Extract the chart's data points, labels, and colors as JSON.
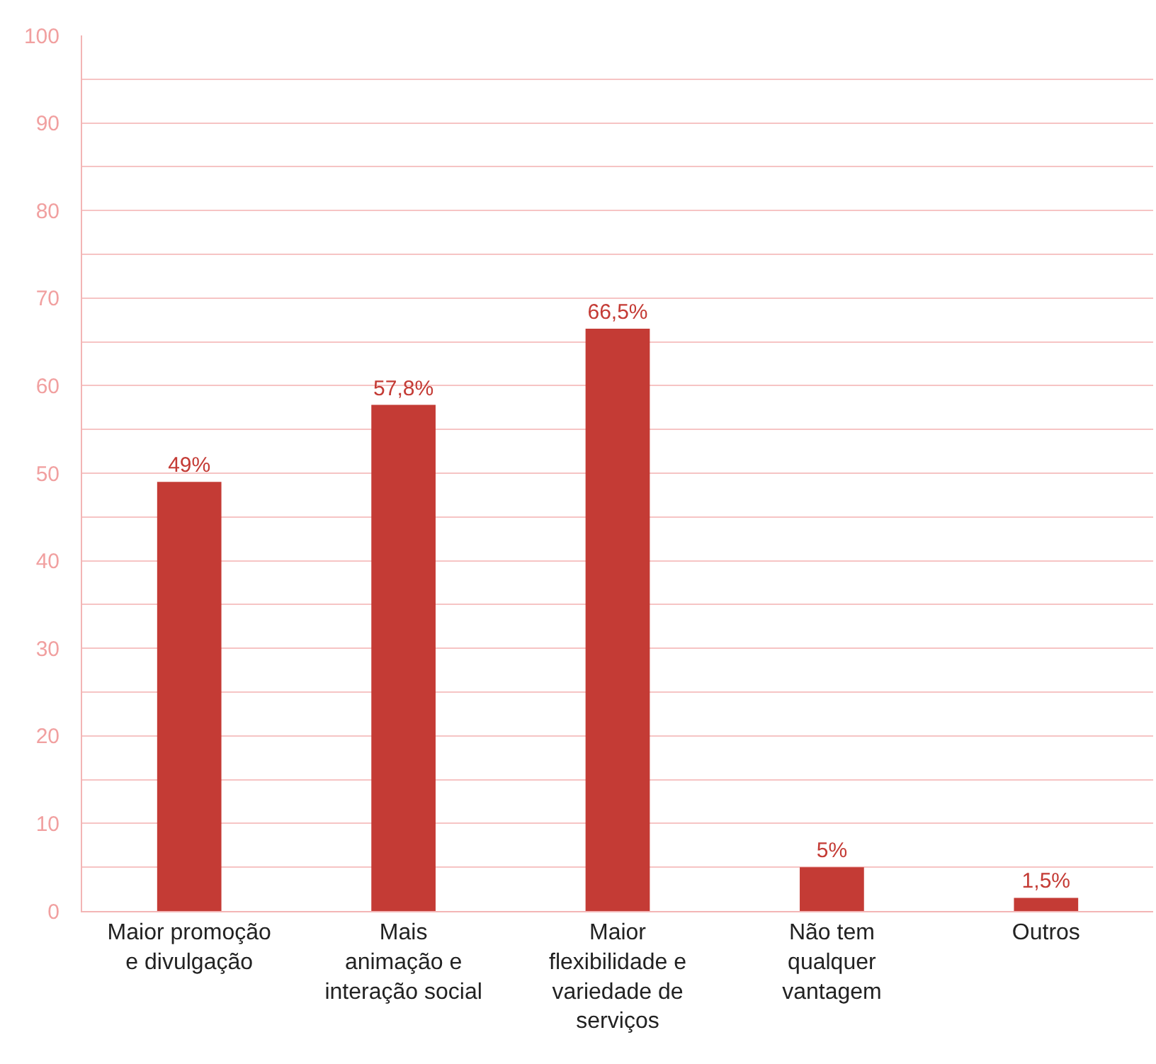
{
  "chart_data": {
    "type": "bar",
    "categories": [
      "Maior promoção\ne divulgação",
      "Mais\nanimação e\ninteração social",
      "Maior\nflexibilidade e\nvariedade de\nserviços",
      "Não tem\nqualquer\nvantagem",
      "Outros"
    ],
    "values": [
      49,
      57.8,
      66.5,
      5,
      1.5
    ],
    "value_labels": [
      "49%",
      "57,8%",
      "66,5%",
      "5%",
      "1,5%"
    ],
    "color": "#c43b35",
    "ylim": [
      0,
      100
    ],
    "yticks": [
      0,
      10,
      20,
      30,
      40,
      50,
      60,
      70,
      80,
      90,
      100
    ],
    "grid": true
  }
}
